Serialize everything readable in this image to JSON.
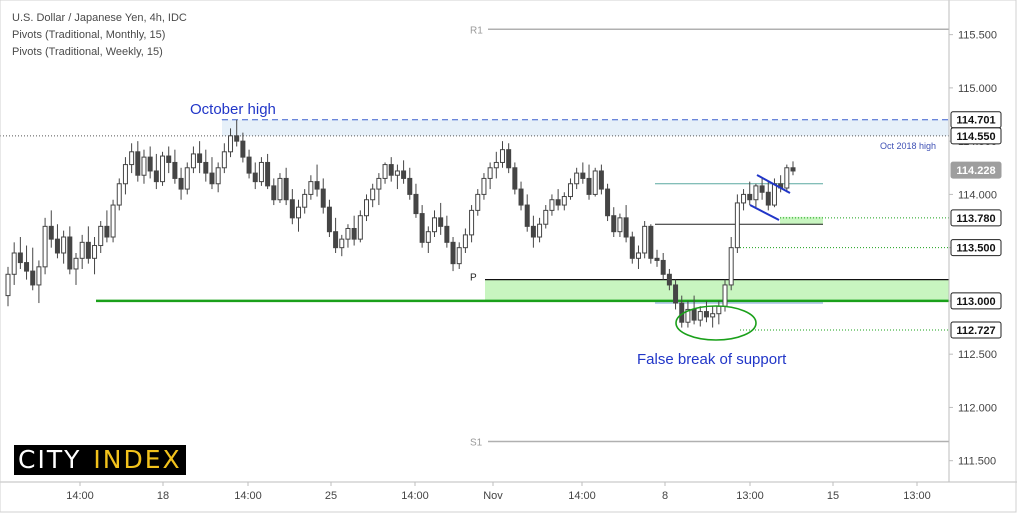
{
  "header": {
    "symbol_line": "U.S. Dollar / Japanese Yen, 4h, IDC",
    "pivots_monthly": "Pivots (Traditional, Monthly, 15)",
    "pivots_weekly": "Pivots (Traditional, Weekly, 15)"
  },
  "logo": {
    "word1": "CITY",
    "word2": "INDEX"
  },
  "colors": {
    "up": "#26a69a",
    "down": "#ef5350",
    "candle": "#454545",
    "support_green": "#1aa01a",
    "annotation_blue": "#2136c8",
    "pivot_gray": "#b0b0b0",
    "zone_green_fill": "#c8f5c0",
    "zone_blue_fill": "#dbe9f7"
  },
  "chart_data": {
    "type": "candlestick",
    "title": "U.S. Dollar / Japanese Yen, 4h, IDC",
    "ylim": [
      111.3,
      115.75
    ],
    "y_ticks": [
      "115.500",
      "115.000",
      "114.500",
      "114.000",
      "113.500",
      "113.000",
      "112.500",
      "112.000",
      "111.500"
    ],
    "x_ticks": [
      "14:00",
      "18",
      "14:00",
      "25",
      "14:00",
      "Nov",
      "14:00",
      "8",
      "13:00",
      "15",
      "13:00"
    ],
    "price_badges": [
      {
        "label": "114.701",
        "value": 114.701,
        "style": "white"
      },
      {
        "label": "114.550",
        "value": 114.55,
        "style": "white"
      },
      {
        "label": "114.228",
        "value": 114.228,
        "style": "gray"
      },
      {
        "label": "113.780",
        "value": 113.78,
        "style": "white"
      },
      {
        "label": "113.500",
        "value": 113.5,
        "style": "white"
      },
      {
        "label": "113.000",
        "value": 113.0,
        "style": "white"
      },
      {
        "label": "112.727",
        "value": 112.727,
        "style": "white"
      }
    ],
    "levels": [
      {
        "label": "R1",
        "value": 115.55,
        "style": "pivot"
      },
      {
        "label": "S1",
        "value": 111.68,
        "style": "pivot"
      },
      {
        "label": "P",
        "value": 113.2,
        "style": "pivot-black"
      },
      {
        "label": "",
        "value": 113.0,
        "style": "support"
      }
    ],
    "annotations": {
      "october_high": "October high",
      "oct_2018_high": "Oct 2018 high",
      "false_break": "False break of support"
    },
    "candles": [
      [
        113.05,
        113.32,
        112.95,
        113.25
      ],
      [
        113.25,
        113.55,
        113.15,
        113.45
      ],
      [
        113.45,
        113.6,
        113.3,
        113.36
      ],
      [
        113.36,
        113.52,
        113.2,
        113.28
      ],
      [
        113.28,
        113.5,
        113.1,
        113.15
      ],
      [
        113.15,
        113.38,
        112.98,
        113.32
      ],
      [
        113.32,
        113.78,
        113.25,
        113.7
      ],
      [
        113.7,
        113.85,
        113.5,
        113.58
      ],
      [
        113.58,
        113.72,
        113.4,
        113.45
      ],
      [
        113.45,
        113.66,
        113.35,
        113.6
      ],
      [
        113.6,
        113.7,
        113.25,
        113.3
      ],
      [
        113.3,
        113.45,
        113.15,
        113.4
      ],
      [
        113.4,
        113.62,
        113.3,
        113.55
      ],
      [
        113.55,
        113.7,
        113.35,
        113.4
      ],
      [
        113.4,
        113.6,
        113.25,
        113.52
      ],
      [
        113.52,
        113.75,
        113.45,
        113.7
      ],
      [
        113.7,
        113.85,
        113.55,
        113.6
      ],
      [
        113.6,
        113.95,
        113.55,
        113.9
      ],
      [
        113.9,
        114.15,
        113.85,
        114.1
      ],
      [
        114.1,
        114.35,
        114.0,
        114.28
      ],
      [
        114.28,
        114.48,
        114.2,
        114.4
      ],
      [
        114.4,
        114.5,
        114.12,
        114.18
      ],
      [
        114.18,
        114.42,
        114.1,
        114.35
      ],
      [
        114.35,
        114.45,
        114.15,
        114.22
      ],
      [
        114.22,
        114.38,
        114.05,
        114.12
      ],
      [
        114.12,
        114.4,
        114.08,
        114.36
      ],
      [
        114.36,
        114.45,
        114.2,
        114.3
      ],
      [
        114.3,
        114.42,
        114.1,
        114.15
      ],
      [
        114.15,
        114.25,
        113.95,
        114.05
      ],
      [
        114.05,
        114.3,
        114.0,
        114.25
      ],
      [
        114.25,
        114.45,
        114.2,
        114.38
      ],
      [
        114.38,
        114.5,
        114.2,
        114.3
      ],
      [
        114.3,
        114.42,
        114.12,
        114.2
      ],
      [
        114.2,
        114.35,
        114.05,
        114.1
      ],
      [
        114.1,
        114.3,
        114.02,
        114.25
      ],
      [
        114.25,
        114.48,
        114.2,
        114.4
      ],
      [
        114.4,
        114.62,
        114.35,
        114.55
      ],
      [
        114.55,
        114.7,
        114.45,
        114.5
      ],
      [
        114.5,
        114.58,
        114.3,
        114.35
      ],
      [
        114.35,
        114.42,
        114.15,
        114.2
      ],
      [
        114.2,
        114.3,
        114.05,
        114.12
      ],
      [
        114.12,
        114.35,
        114.08,
        114.3
      ],
      [
        114.3,
        114.38,
        114.05,
        114.08
      ],
      [
        114.08,
        114.15,
        113.9,
        113.95
      ],
      [
        113.95,
        114.2,
        113.92,
        114.15
      ],
      [
        114.15,
        114.25,
        113.9,
        113.95
      ],
      [
        113.95,
        114.05,
        113.72,
        113.78
      ],
      [
        113.78,
        113.95,
        113.65,
        113.88
      ],
      [
        113.88,
        114.05,
        113.82,
        114.0
      ],
      [
        114.0,
        114.18,
        113.95,
        114.12
      ],
      [
        114.12,
        114.28,
        113.98,
        114.05
      ],
      [
        114.05,
        114.15,
        113.82,
        113.88
      ],
      [
        113.88,
        113.95,
        113.6,
        113.65
      ],
      [
        113.65,
        113.78,
        113.45,
        113.5
      ],
      [
        113.5,
        113.62,
        113.42,
        113.58
      ],
      [
        113.58,
        113.72,
        113.5,
        113.68
      ],
      [
        113.68,
        113.8,
        113.52,
        113.58
      ],
      [
        113.58,
        113.85,
        113.55,
        113.8
      ],
      [
        113.8,
        114.0,
        113.75,
        113.95
      ],
      [
        113.95,
        114.1,
        113.88,
        114.05
      ],
      [
        114.05,
        114.2,
        113.9,
        114.15
      ],
      [
        114.15,
        114.3,
        114.1,
        114.28
      ],
      [
        114.28,
        114.35,
        114.12,
        114.18
      ],
      [
        114.18,
        114.28,
        114.05,
        114.22
      ],
      [
        114.22,
        114.32,
        114.1,
        114.15
      ],
      [
        114.15,
        114.25,
        113.95,
        114.0
      ],
      [
        114.0,
        114.1,
        113.78,
        113.82
      ],
      [
        113.82,
        113.9,
        113.5,
        113.55
      ],
      [
        113.55,
        113.7,
        113.45,
        113.65
      ],
      [
        113.65,
        113.85,
        113.6,
        113.78
      ],
      [
        113.78,
        113.92,
        113.62,
        113.7
      ],
      [
        113.7,
        113.8,
        113.5,
        113.55
      ],
      [
        113.55,
        113.6,
        113.28,
        113.35
      ],
      [
        113.35,
        113.55,
        113.3,
        113.5
      ],
      [
        113.5,
        113.68,
        113.45,
        113.62
      ],
      [
        113.62,
        113.9,
        113.55,
        113.85
      ],
      [
        113.85,
        114.05,
        113.8,
        114.0
      ],
      [
        114.0,
        114.2,
        113.95,
        114.15
      ],
      [
        114.15,
        114.3,
        114.05,
        114.25
      ],
      [
        114.25,
        114.4,
        114.15,
        114.3
      ],
      [
        114.3,
        114.5,
        114.25,
        114.42
      ],
      [
        114.42,
        114.48,
        114.2,
        114.25
      ],
      [
        114.25,
        114.3,
        114.0,
        114.05
      ],
      [
        114.05,
        114.12,
        113.85,
        113.9
      ],
      [
        113.9,
        114.0,
        113.65,
        113.7
      ],
      [
        113.7,
        113.8,
        113.5,
        113.6
      ],
      [
        113.6,
        113.78,
        113.55,
        113.72
      ],
      [
        113.72,
        113.9,
        113.68,
        113.85
      ],
      [
        113.85,
        114.0,
        113.8,
        113.95
      ],
      [
        113.95,
        114.05,
        113.85,
        113.9
      ],
      [
        113.9,
        114.02,
        113.85,
        113.98
      ],
      [
        113.98,
        114.15,
        113.95,
        114.1
      ],
      [
        114.1,
        114.25,
        114.05,
        114.2
      ],
      [
        114.2,
        114.3,
        114.1,
        114.15
      ],
      [
        114.15,
        114.28,
        113.95,
        114.0
      ],
      [
        114.0,
        114.25,
        113.98,
        114.22
      ],
      [
        114.22,
        114.28,
        114.0,
        114.05
      ],
      [
        114.05,
        114.1,
        113.75,
        113.8
      ],
      [
        113.8,
        113.88,
        113.6,
        113.65
      ],
      [
        113.65,
        113.82,
        113.6,
        113.78
      ],
      [
        113.78,
        113.9,
        113.55,
        113.6
      ],
      [
        113.6,
        113.65,
        113.35,
        113.4
      ],
      [
        113.4,
        113.52,
        113.3,
        113.45
      ],
      [
        113.45,
        113.75,
        113.4,
        113.7
      ],
      [
        113.7,
        113.72,
        113.35,
        113.4
      ],
      [
        113.4,
        113.48,
        113.32,
        113.38
      ],
      [
        113.38,
        113.45,
        113.2,
        113.25
      ],
      [
        113.25,
        113.3,
        113.1,
        113.15
      ],
      [
        113.15,
        113.2,
        112.92,
        112.98
      ],
      [
        112.98,
        113.05,
        112.75,
        112.8
      ],
      [
        112.8,
        113.0,
        112.75,
        112.92
      ],
      [
        112.92,
        113.05,
        112.78,
        112.82
      ],
      [
        112.82,
        112.95,
        112.76,
        112.9
      ],
      [
        112.9,
        113.0,
        112.8,
        112.85
      ],
      [
        112.85,
        112.95,
        112.75,
        112.88
      ],
      [
        112.88,
        113.0,
        112.78,
        112.95
      ],
      [
        112.95,
        113.2,
        112.9,
        113.15
      ],
      [
        113.15,
        113.6,
        113.1,
        113.5
      ],
      [
        113.5,
        114.0,
        113.45,
        113.92
      ],
      [
        113.92,
        114.05,
        113.85,
        114.0
      ],
      [
        114.0,
        114.12,
        113.9,
        113.95
      ],
      [
        113.95,
        114.1,
        113.88,
        114.08
      ],
      [
        114.08,
        114.15,
        113.95,
        114.02
      ],
      [
        114.02,
        114.12,
        113.85,
        113.9
      ],
      [
        113.9,
        114.15,
        113.88,
        114.1
      ],
      [
        114.1,
        114.18,
        114.02,
        114.06
      ],
      [
        114.06,
        114.28,
        114.02,
        114.25
      ],
      [
        114.25,
        114.31,
        114.18,
        114.22
      ]
    ]
  }
}
